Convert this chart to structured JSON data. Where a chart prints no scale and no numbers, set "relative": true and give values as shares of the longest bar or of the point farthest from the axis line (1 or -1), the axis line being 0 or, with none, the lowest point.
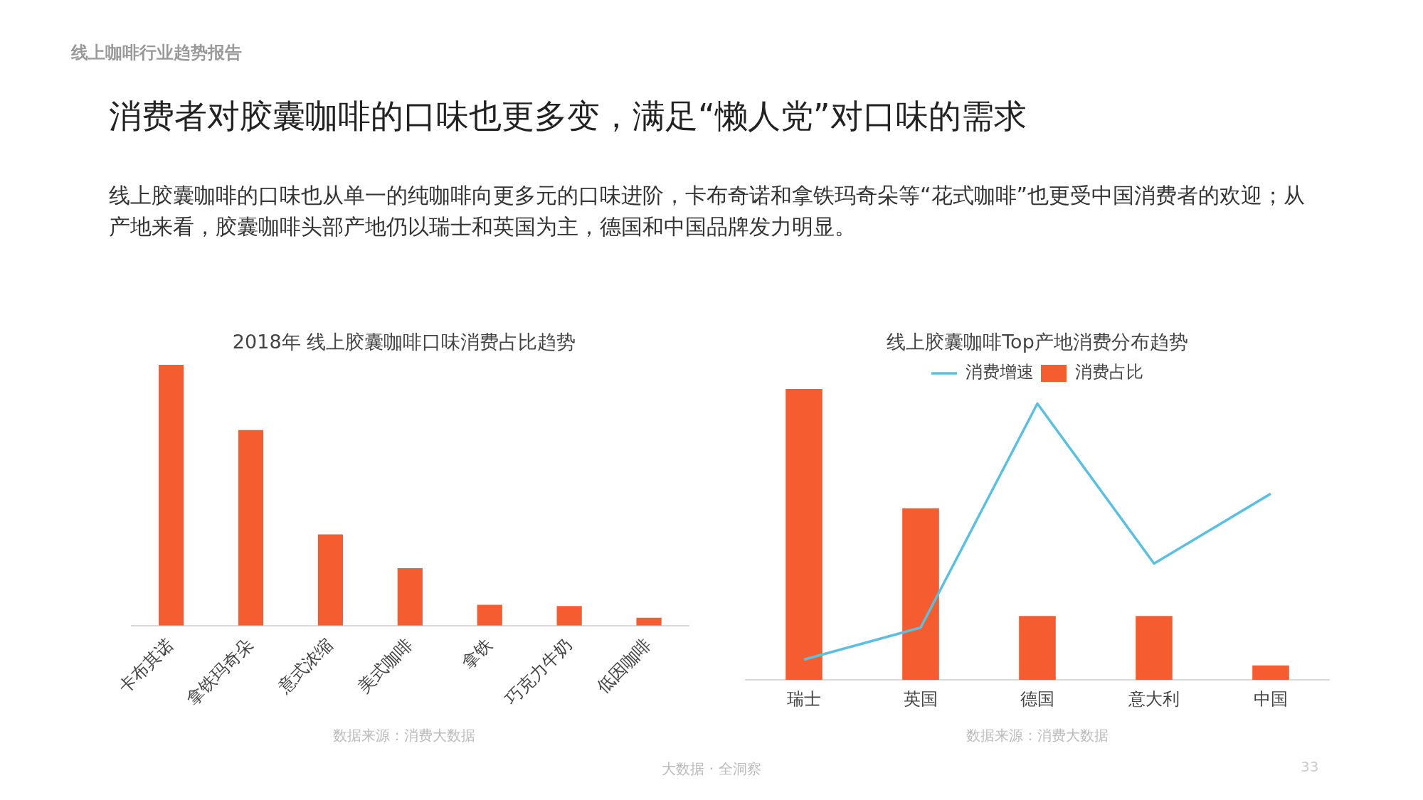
{
  "chart_data": [
    {
      "type": "bar",
      "title": "2018年 线上胶囊咖啡口味消费占比趋势",
      "categories": [
        "卡布其诺",
        "拿铁玛奇朵",
        "意式浓缩",
        "美式咖啡",
        "拿铁",
        "巧克力牛奶",
        "低因咖啡"
      ],
      "values": [
        1,
        0.75,
        0.35,
        0.22,
        0.08,
        0.075,
        0.03
      ],
      "color": "#f55d30",
      "relative": true,
      "annotations": [
        "线上咖啡行业趋势报告",
        "消费者对胶囊咖啡的口味也更多变，满足“懒人党”对口味的需求",
        "线上胶囊咖啡的口味也从单一的纯咖啡向更多元的口味进阶，卡布奇诺和拿铁玛奇朵等“花式咖啡”也更受中国消费者的欢迎；从产地来看，胶囊咖啡头部产地仍以瑞士和英国为主，德国和中国品牌发力明显。",
        "数据来源：消费大数据"
      ]
    },
    {
      "type": "bar",
      "title": "线上胶囊咖啡Top产地消费分布趋势",
      "categories": [
        "瑞士",
        "英国",
        "德国",
        "意大利",
        "中国"
      ],
      "series": [
        {
          "name": "消费占比",
          "color": "#f55d30",
          "values": [
            1,
            0.59,
            0.22,
            0.22,
            0.05
          ]
        },
        {
          "name": "消费增速",
          "type": "line",
          "color": "#5bc0e0",
          "values": [
            0.07,
            0.18,
            0.95,
            0.4,
            0.64
          ]
        }
      ],
      "relative": true,
      "legend": "top",
      "marker": "none",
      "annotations": [
        "数据来源：消费大数据",
        "大数据 · 全洞察",
        "33"
      ]
    }
  ]
}
